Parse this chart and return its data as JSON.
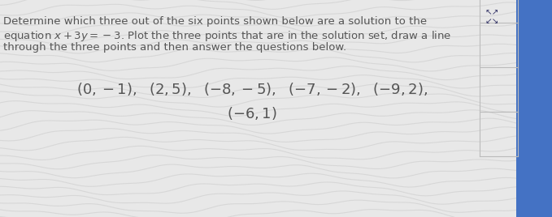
{
  "bg_color": "#e8e8e8",
  "wave_color": "#d0d0d0",
  "right_panel_color": "#4472c4",
  "text_color": "#555555",
  "arrow_color": "#333366",
  "grid_color": "#bbbbbb",
  "line1": "Determine which three out of the six points shown below are a solution to the",
  "line2_math": "equation $x + 3y = -3$. Plot the three points that are in the solution set, draw a line",
  "line3": "through the three points and then answer the questions below.",
  "points_line1": "$(0,-1),\\ \\ (2,5),\\ \\ (-8,-5),\\ \\ (-7,-2),\\ \\ (-9,2),$",
  "points_line2": "$(-6,1)$",
  "font_size_para": 9.5,
  "font_size_points": 13,
  "fig_width": 6.79,
  "fig_height": 2.68
}
